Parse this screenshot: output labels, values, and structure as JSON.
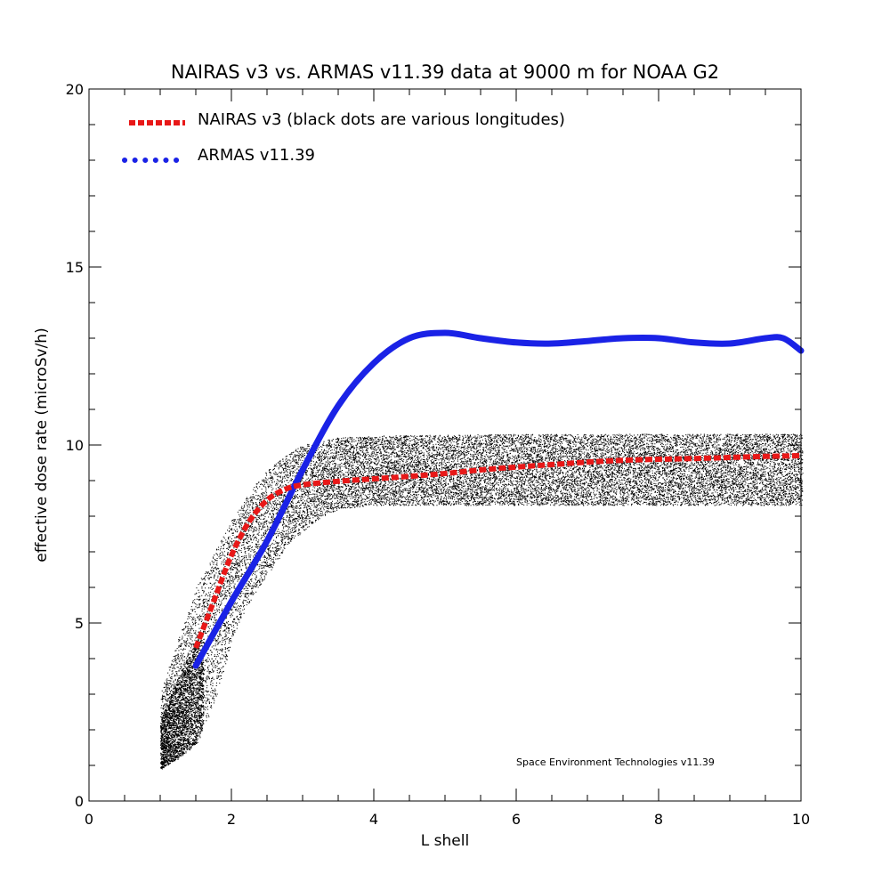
{
  "chart_data": {
    "type": "line",
    "title": "NAIRAS  v3 vs. ARMAS v11.39 data at 9000 m for NOAA G2",
    "xlabel": "L shell",
    "ylabel": "effective dose rate (microSv/h)",
    "xlim": [
      0,
      10
    ],
    "ylim": [
      0,
      20
    ],
    "x_ticks": [
      "0",
      "2",
      "4",
      "6",
      "8",
      "10"
    ],
    "y_ticks": [
      "0",
      "5",
      "10",
      "15",
      "20"
    ],
    "grid": false,
    "legend_position": "top-left",
    "annotation": "Space Environment Technologies v11.39",
    "series": [
      {
        "name": "NAIRAS v3 (black dots are various longitudes)",
        "style": "dashed",
        "color": "#e81818",
        "points": [
          [
            1.5,
            4.3
          ],
          [
            1.75,
            5.6
          ],
          [
            2.0,
            6.9
          ],
          [
            2.25,
            7.85
          ],
          [
            2.5,
            8.45
          ],
          [
            2.75,
            8.75
          ],
          [
            3.0,
            8.88
          ],
          [
            3.5,
            8.98
          ],
          [
            4.0,
            9.05
          ],
          [
            4.5,
            9.12
          ],
          [
            5.0,
            9.2
          ],
          [
            5.5,
            9.3
          ],
          [
            6.0,
            9.38
          ],
          [
            6.5,
            9.45
          ],
          [
            7.0,
            9.52
          ],
          [
            7.5,
            9.57
          ],
          [
            8.0,
            9.6
          ],
          [
            8.5,
            9.62
          ],
          [
            9.0,
            9.65
          ],
          [
            9.5,
            9.68
          ],
          [
            10.0,
            9.7
          ]
        ]
      },
      {
        "name": "ARMAS v11.39",
        "style": "dotted",
        "color": "#1a22e6",
        "points": [
          [
            1.5,
            3.8
          ],
          [
            2.0,
            5.6
          ],
          [
            2.5,
            7.3
          ],
          [
            3.0,
            9.3
          ],
          [
            3.5,
            11.1
          ],
          [
            4.0,
            12.3
          ],
          [
            4.5,
            13.0
          ],
          [
            5.0,
            13.15
          ],
          [
            5.5,
            13.0
          ],
          [
            6.0,
            12.88
          ],
          [
            6.5,
            12.85
          ],
          [
            7.0,
            12.92
          ],
          [
            7.5,
            13.0
          ],
          [
            8.0,
            13.0
          ],
          [
            8.5,
            12.88
          ],
          [
            9.0,
            12.85
          ],
          [
            9.5,
            13.0
          ],
          [
            9.75,
            13.0
          ],
          [
            10.0,
            12.65
          ]
        ]
      }
    ],
    "scatter_band": {
      "name": "various longitudes",
      "color": "#000000",
      "upper": [
        [
          1.0,
          3.0
        ],
        [
          1.25,
          4.6
        ],
        [
          1.5,
          6.0
        ],
        [
          1.75,
          7.0
        ],
        [
          2.0,
          7.9
        ],
        [
          2.25,
          8.7
        ],
        [
          2.5,
          9.3
        ],
        [
          2.75,
          9.7
        ],
        [
          3.0,
          10.0
        ],
        [
          3.5,
          10.2
        ],
        [
          4.0,
          10.25
        ],
        [
          6.0,
          10.3
        ],
        [
          8.0,
          10.3
        ],
        [
          10.0,
          10.3
        ]
      ],
      "lower": [
        [
          1.0,
          0.9
        ],
        [
          1.25,
          1.2
        ],
        [
          1.5,
          1.6
        ],
        [
          1.75,
          2.8
        ],
        [
          2.0,
          4.6
        ],
        [
          2.25,
          5.6
        ],
        [
          2.5,
          6.4
        ],
        [
          2.75,
          7.1
        ],
        [
          3.0,
          7.6
        ],
        [
          3.25,
          7.95
        ],
        [
          3.5,
          8.2
        ],
        [
          4.0,
          8.3
        ],
        [
          6.0,
          8.3
        ],
        [
          8.0,
          8.3
        ],
        [
          10.0,
          8.3
        ]
      ]
    }
  }
}
